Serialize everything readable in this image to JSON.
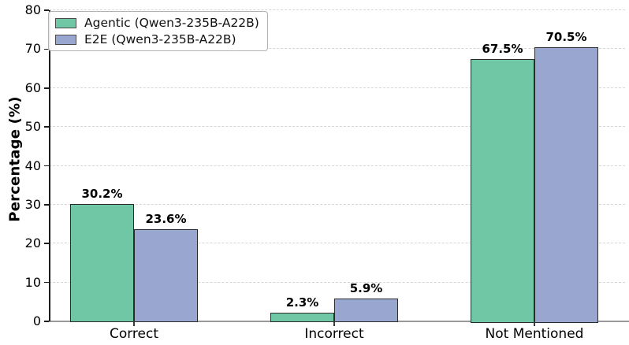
{
  "chart_data": {
    "type": "bar",
    "title": "",
    "categories": [
      "Correct",
      "Incorrect",
      "Not Mentioned"
    ],
    "series": [
      {
        "name": "Agentic (Qwen3-235B-A22B)",
        "color": "#70c7a6",
        "values": [
          30.2,
          2.3,
          67.5
        ],
        "value_labels": [
          "30.2%",
          "2.3%",
          "67.5%"
        ]
      },
      {
        "name": "E2E (Qwen3-235B-A22B)",
        "color": "#98a6d0",
        "values": [
          23.6,
          5.9,
          70.5
        ],
        "value_labels": [
          "23.6%",
          "5.9%",
          "70.5%"
        ]
      }
    ],
    "xlabel": "",
    "ylabel": "Percentage (%)",
    "ylim": [
      0,
      80
    ],
    "yticks": [
      0,
      10,
      20,
      30,
      40,
      50,
      60,
      70,
      80
    ],
    "grid": "horizontal-dashed",
    "grid_color": "#d6d6d6",
    "legend_position": "upper-left",
    "bar_edge_color": "#2b2b2b",
    "axis_color_left": "#1c1c1c",
    "axis_color_bottom": "#9a9a9a"
  }
}
